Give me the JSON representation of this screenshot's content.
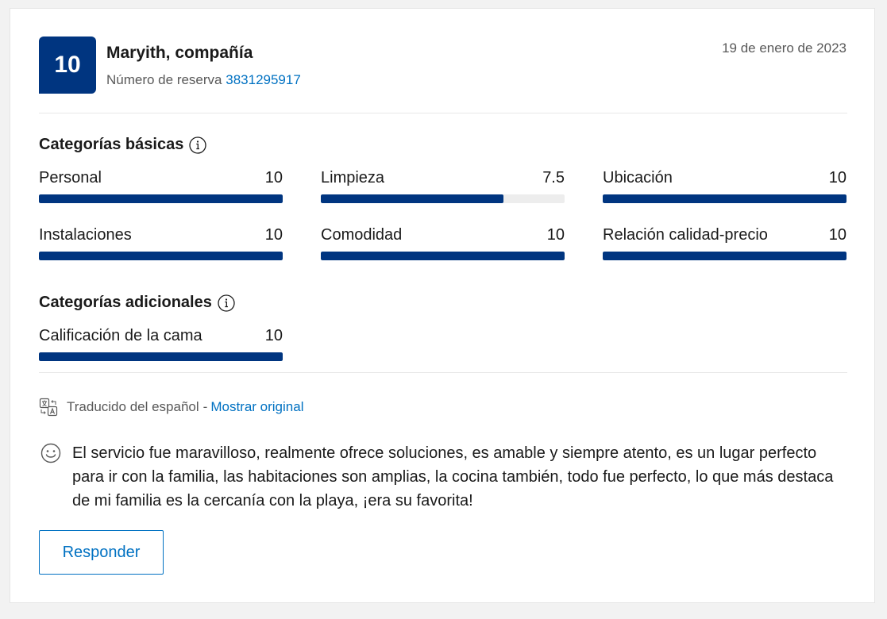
{
  "review": {
    "score": "10",
    "guest_name": "Maryith, compañía",
    "reservation_label": "Número de reserva",
    "reservation_number": "3831295917",
    "date": "19 de enero de 2023"
  },
  "basic_categories": {
    "title": "Categorías básicas",
    "items": [
      {
        "label": "Personal",
        "score": "10",
        "fill": 1.0
      },
      {
        "label": "Limpieza",
        "score": "7.5",
        "fill": 0.75
      },
      {
        "label": "Ubicación",
        "score": "10",
        "fill": 1.0
      },
      {
        "label": "Instalaciones",
        "score": "10",
        "fill": 1.0
      },
      {
        "label": "Comodidad",
        "score": "10",
        "fill": 1.0
      },
      {
        "label": "Relación calidad-precio",
        "score": "10",
        "fill": 1.0
      }
    ]
  },
  "additional_categories": {
    "title": "Categorías adicionales",
    "items": [
      {
        "label": "Calificación de la cama",
        "score": "10",
        "fill": 1.0
      }
    ]
  },
  "translation": {
    "text": "Traducido del español",
    "separator": "-",
    "link": "Mostrar original"
  },
  "review_text": "El servicio fue maravilloso, realmente ofrece soluciones, es amable y siempre atento, es un lugar perfecto para ir con la familia, las habitaciones son amplias, la cocina también, todo fue perfecto, lo que más destaca de mi familia es la cercanía con la playa, ¡era su favorita!",
  "actions": {
    "reply_label": "Responder"
  },
  "colors": {
    "brand": "#003580",
    "link": "#0071c2",
    "track": "#ededed"
  },
  "icons": {
    "info": "info-icon",
    "translate": "translate-icon",
    "sentiment": "smile-icon"
  }
}
